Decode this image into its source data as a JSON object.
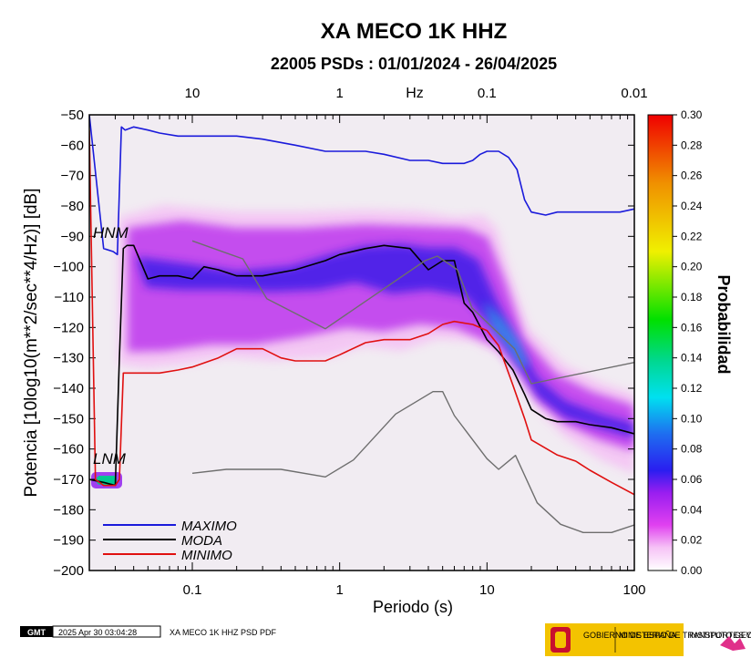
{
  "chart_data": {
    "type": "line",
    "title": "XA MECO 1K HHZ",
    "subtitle": "22005 PSDs : 01/01/2024 - 26/04/2025",
    "xlabel": "Periodo (s)",
    "ylabel": "Potencia [10log10(m**2/sec**4/Hz)] [dB]",
    "top_axis_label": "Hz",
    "x_scale": "log",
    "xlim": [
      0.02,
      100
    ],
    "ylim": [
      -200,
      -50
    ],
    "x_ticks": [
      0.1,
      1,
      10,
      100
    ],
    "x_tick_labels": [
      "0.1",
      "1",
      "10",
      "100"
    ],
    "top_ticks_period": [
      0.1,
      1,
      10,
      100
    ],
    "top_tick_labels": [
      "10",
      "1",
      "0.1",
      "0.01"
    ],
    "y_ticks": [
      -50,
      -60,
      -70,
      -80,
      -90,
      -100,
      -110,
      -120,
      -130,
      -140,
      -150,
      -160,
      -170,
      -180,
      -190,
      -200
    ],
    "y_tick_labels": [
      "−50",
      "−60",
      "−70",
      "−80",
      "−90",
      "−100",
      "−110",
      "−120",
      "−130",
      "−140",
      "−150",
      "−160",
      "−170",
      "−180",
      "−190",
      "−200"
    ],
    "colorbar": {
      "label": "Probabilidad",
      "range": [
        0,
        0.3
      ],
      "ticks": [
        "0.30",
        "0.28",
        "0.26",
        "0.24",
        "0.22",
        "0.20",
        "0.18",
        "0.16",
        "0.14",
        "0.12",
        "0.10",
        "0.08",
        "0.06",
        "0.04",
        "0.02",
        "0.00"
      ]
    },
    "annotations": {
      "hnm": "HNM",
      "lnm": "LNM"
    },
    "series": [
      {
        "name": "MAXIMO",
        "color": "#1a1adb",
        "x": [
          0.02,
          0.025,
          0.029,
          0.031,
          0.033,
          0.035,
          0.04,
          0.05,
          0.06,
          0.08,
          0.1,
          0.15,
          0.2,
          0.3,
          0.5,
          0.8,
          1.0,
          1.5,
          2.0,
          3,
          4,
          5,
          6,
          7,
          8,
          9,
          10,
          12,
          14,
          16,
          18,
          20,
          25,
          30,
          40,
          60,
          80,
          100
        ],
        "y": [
          -50,
          -94,
          -95,
          -96,
          -54,
          -55,
          -54,
          -55,
          -56,
          -57,
          -57,
          -57,
          -57,
          -58,
          -60,
          -62,
          -62,
          -62,
          -63,
          -65,
          -65,
          -66,
          -66,
          -66,
          -65,
          -63,
          -62,
          -62,
          -64,
          -68,
          -78,
          -82,
          -83,
          -82,
          -82,
          -82,
          -82,
          -81
        ]
      },
      {
        "name": "MODA",
        "color": "#000000",
        "x": [
          0.02,
          0.025,
          0.03,
          0.032,
          0.034,
          0.036,
          0.04,
          0.05,
          0.06,
          0.07,
          0.08,
          0.1,
          0.12,
          0.15,
          0.2,
          0.3,
          0.5,
          0.8,
          1.0,
          1.5,
          2.0,
          3,
          4,
          5,
          6,
          7,
          8,
          10,
          12,
          15,
          18,
          20,
          25,
          30,
          40,
          50,
          70,
          100
        ],
        "y": [
          -170,
          -171,
          -172,
          -130,
          -94,
          -93,
          -93,
          -104,
          -103,
          -103,
          -103,
          -104,
          -100,
          -101,
          -103,
          -103,
          -101,
          -98,
          -96,
          -94,
          -93,
          -94,
          -101,
          -98,
          -98,
          -112,
          -115,
          -124,
          -128,
          -134,
          -142,
          -147,
          -150,
          -151,
          -151,
          -152,
          -153,
          -155
        ]
      },
      {
        "name": "MINIMO",
        "color": "#e01010",
        "x": [
          0.02,
          0.022,
          0.025,
          0.03,
          0.032,
          0.034,
          0.04,
          0.06,
          0.08,
          0.1,
          0.15,
          0.2,
          0.3,
          0.4,
          0.5,
          0.8,
          1.0,
          1.5,
          2.0,
          3,
          4,
          5,
          6,
          8,
          10,
          12,
          15,
          18,
          20,
          30,
          40,
          50,
          70,
          100
        ],
        "y": [
          -55,
          -170,
          -172,
          -172,
          -170,
          -135,
          -135,
          -135,
          -134,
          -133,
          -130,
          -127,
          -127,
          -130,
          -131,
          -131,
          -129,
          -125,
          -124,
          -124,
          -122,
          -119,
          -118,
          -119,
          -121,
          -126,
          -139,
          -150,
          -157,
          -162,
          -164,
          -167,
          -171,
          -175
        ]
      },
      {
        "name": "",
        "color": "#6e6e6e",
        "x": [
          0.1,
          0.22,
          0.32,
          0.8,
          3.8,
          4.6,
          6.3,
          7.9,
          15.4,
          20,
          100
        ],
        "y": [
          -91.5,
          -97.4,
          -110.5,
          -120.4,
          -98.0,
          -96.5,
          -101.0,
          -113.5,
          -127.0,
          -138.5,
          -131.5
        ]
      },
      {
        "name": "",
        "color": "#6e6e6e",
        "x": [
          0.1,
          0.17,
          0.4,
          0.8,
          1.24,
          2.4,
          4.3,
          5.0,
          6.0,
          10,
          12,
          15.6,
          21.9,
          31.6,
          45,
          70,
          100
        ],
        "y": [
          -168.0,
          -166.7,
          -166.7,
          -169.2,
          -163.6,
          -148.5,
          -141.1,
          -141.1,
          -149.0,
          -163.2,
          -166.7,
          -162.1,
          -177.7,
          -184.8,
          -187.5,
          -187.5,
          -185.0
        ]
      }
    ],
    "legend": {
      "placement": "bottom-left",
      "entries": [
        "MAXIMO",
        "MODA",
        "MINIMO"
      ]
    }
  },
  "footer": {
    "gmt_logo": "GMT",
    "timestamp": "2025 Apr 30 03:04:28",
    "caption": "XA MECO 1K HHZ PSD PDF",
    "gov_text": "GOBIERNO DE ESPAÑA",
    "ministry_text": "MINISTERIO DE TRANSPORTES Y MOVILIDAD SOSTENIBLE",
    "ign_text": "INSTITUTO GEOGRÁFICO NACIONAL"
  }
}
